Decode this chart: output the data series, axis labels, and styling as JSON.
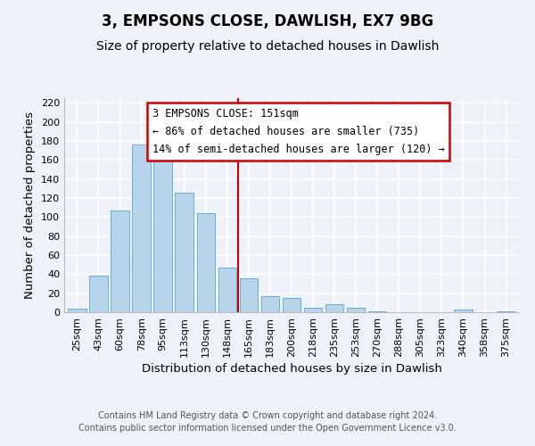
{
  "title": "3, EMPSONS CLOSE, DAWLISH, EX7 9BG",
  "subtitle": "Size of property relative to detached houses in Dawlish",
  "xlabel": "Distribution of detached houses by size in Dawlish",
  "ylabel": "Number of detached properties",
  "bar_labels": [
    "25sqm",
    "43sqm",
    "60sqm",
    "78sqm",
    "95sqm",
    "113sqm",
    "130sqm",
    "148sqm",
    "165sqm",
    "183sqm",
    "200sqm",
    "218sqm",
    "235sqm",
    "253sqm",
    "270sqm",
    "288sqm",
    "305sqm",
    "323sqm",
    "340sqm",
    "358sqm",
    "375sqm"
  ],
  "bar_values": [
    4,
    38,
    107,
    176,
    175,
    126,
    104,
    47,
    36,
    17,
    15,
    5,
    8,
    5,
    1,
    0,
    0,
    0,
    3,
    0,
    1
  ],
  "bar_color": "#b8d4ea",
  "bar_edge_color": "#6baed6",
  "vline_x": 7.5,
  "vline_color": "#cc0000",
  "annotation_title": "3 EMPSONS CLOSE: 151sqm",
  "annotation_line1": "← 86% of detached houses are smaller (735)",
  "annotation_line2": "14% of semi-detached houses are larger (120) →",
  "annotation_box_color": "#ffffff",
  "annotation_box_edge": "#cc0000",
  "ylim": [
    0,
    225
  ],
  "yticks": [
    0,
    20,
    40,
    60,
    80,
    100,
    120,
    140,
    160,
    180,
    200,
    220
  ],
  "footer_line1": "Contains HM Land Registry data © Crown copyright and database right 2024.",
  "footer_line2": "Contains public sector information licensed under the Open Government Licence v3.0.",
  "title_fontsize": 12,
  "subtitle_fontsize": 10,
  "axis_label_fontsize": 9.5,
  "tick_fontsize": 8,
  "annotation_fontsize": 8.5,
  "footer_fontsize": 7,
  "bg_color": "#eef2f8"
}
